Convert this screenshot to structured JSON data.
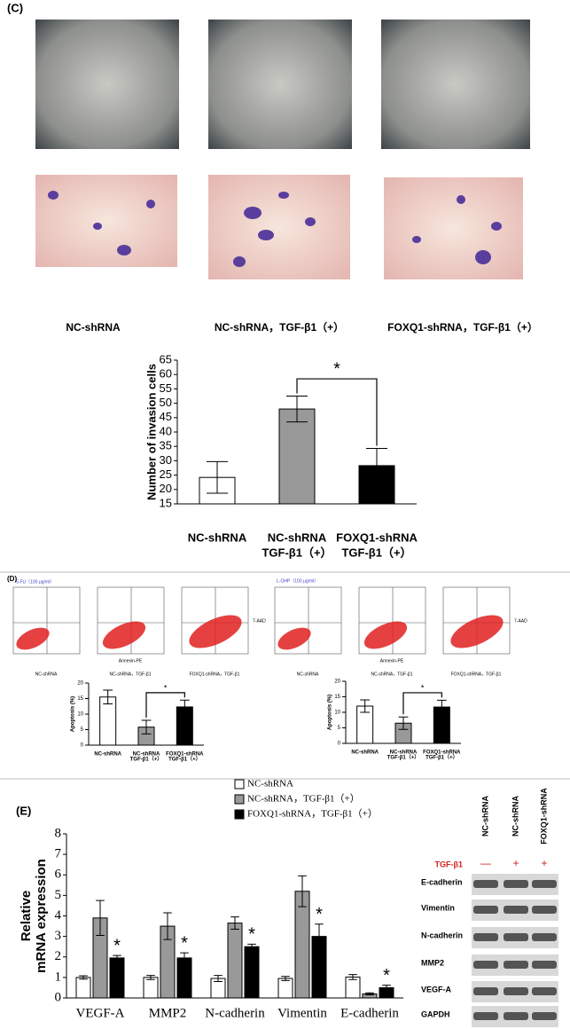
{
  "panel_labels": [
    "(C)",
    "(D)",
    "(E)"
  ],
  "panel_c": {
    "image_captions": [
      "NC-shRNA",
      "NC-shRNA，TGF-β1（+）",
      "FOXQ1-shRNA，TGF-β1（+）"
    ]
  },
  "panel_d": {
    "flow_titles": [
      "5-FU（100 μg/ml）",
      "L-OHP（100 μg/ml）"
    ],
    "flow_captions": [
      "NC-shRNA",
      "NC-shRNA，TGF-β1",
      "FOXQ1-shRNA，TGF-β1"
    ],
    "x_axis_label": "Annexin-PE",
    "y_axis_label": "7-AAD"
  },
  "western": {
    "columns": [
      "NC-shRNA",
      "NC-shRNA",
      "FOXQ1-shRNA"
    ],
    "treatment_label": "TGF-β1",
    "treatment_marks": [
      "—",
      "+",
      "+"
    ],
    "proteins": [
      "E-cadherin",
      "Vimentin",
      "N-cadherin",
      "MMP2",
      "VEGF-A",
      "GAPDH"
    ]
  },
  "chart_data": [
    {
      "type": "bar",
      "ylabel": "Number of invasion cells",
      "categories": [
        [
          "NC-shRNA"
        ],
        [
          "NC-shRNA",
          "TGF-β1（+）"
        ],
        [
          "FOXQ1-shRNA",
          "TGF-β1（+）"
        ]
      ],
      "values": [
        24.2,
        48,
        28.3
      ],
      "errors": [
        5.5,
        4.5,
        6
      ],
      "colors": [
        "#ffffff",
        "#999999",
        "#000000"
      ],
      "ylim": [
        15,
        65
      ],
      "yticks": [
        15,
        20,
        25,
        30,
        35,
        40,
        45,
        50,
        55,
        60,
        65
      ],
      "significance_label": "*"
    },
    {
      "type": "bar",
      "ylabel": "Apoptosis (%)",
      "categories": [
        [
          "NC-shRNA"
        ],
        [
          "NC-shRNA",
          "TGF-β1（+）"
        ],
        [
          "FOXQ1-shRNA",
          "TGF-β1（+）"
        ]
      ],
      "values": [
        15.5,
        5.8,
        12.3
      ],
      "errors": [
        2.2,
        2.2,
        2.2
      ],
      "colors": [
        "#ffffff",
        "#999999",
        "#000000"
      ],
      "ylim": [
        0,
        20
      ],
      "yticks": [
        0,
        5,
        10,
        15,
        20
      ],
      "significance_label": "*"
    },
    {
      "type": "bar",
      "ylabel": "Apoptosis (%)",
      "categories": [
        [
          "NC-shRNA"
        ],
        [
          "NC-shRNA",
          "TGF-β1（+）"
        ],
        [
          "FOXQ1-shRNA",
          "TGF-β1（+）"
        ]
      ],
      "values": [
        12,
        6.5,
        11.7
      ],
      "errors": [
        2,
        2,
        2.2
      ],
      "colors": [
        "#ffffff",
        "#999999",
        "#000000"
      ],
      "ylim": [
        0,
        20
      ],
      "yticks": [
        0,
        5,
        10,
        15,
        20
      ],
      "significance_label": "*"
    },
    {
      "type": "grouped_bar",
      "ylabel": [
        "Relative",
        "mRNA expression"
      ],
      "categories": [
        [
          "VEGF-A"
        ],
        [
          "MMP2"
        ],
        [
          "N-cadherin"
        ],
        [
          "Vimentin"
        ],
        [
          "E-cadherin"
        ]
      ],
      "series": [
        {
          "name": "NC-shRNA",
          "color": "#ffffff",
          "values": [
            1,
            1,
            0.95,
            0.95,
            1.02
          ],
          "errors": [
            0.08,
            0.1,
            0.15,
            0.1,
            0.12
          ]
        },
        {
          "name": "NC-shRNA，TGF-β1（+）",
          "color": "#999999",
          "values": [
            3.9,
            3.5,
            3.65,
            5.2,
            0.2
          ],
          "errors": [
            0.85,
            0.65,
            0.3,
            0.75,
            0.05
          ]
        },
        {
          "name": "FOXQ1-shRNA，TGF-β1（+）",
          "color": "#000000",
          "values": [
            1.95,
            1.95,
            2.5,
            3.0,
            0.5
          ],
          "errors": [
            0.12,
            0.25,
            0.12,
            0.6,
            0.12
          ],
          "significance_labels": [
            "*",
            "*",
            "*",
            "*",
            "*"
          ]
        }
      ],
      "ylim": [
        0,
        8
      ],
      "yticks": [
        0,
        1,
        2,
        3,
        4,
        5,
        6,
        7,
        8
      ]
    }
  ]
}
